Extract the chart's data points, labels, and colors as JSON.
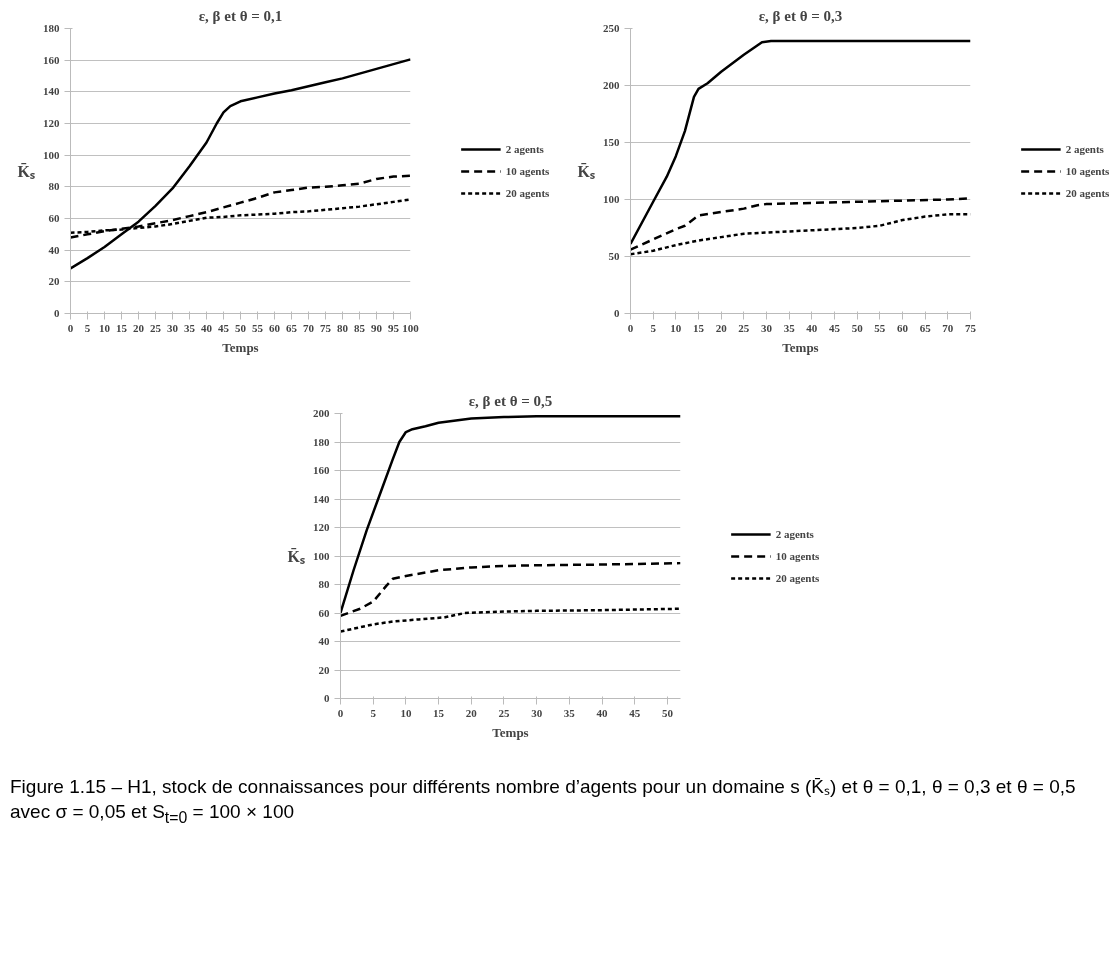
{
  "chart_data": [
    {
      "type": "line",
      "title": "ε, β et θ = 0,1",
      "xlabel": "Temps",
      "ylabel": "K̄ₛ",
      "xlim": [
        0,
        100
      ],
      "xticks": [
        0,
        5,
        10,
        15,
        20,
        25,
        30,
        35,
        40,
        45,
        50,
        55,
        60,
        65,
        70,
        75,
        80,
        85,
        90,
        95,
        100
      ],
      "ylim": [
        0,
        180
      ],
      "yticks": [
        0,
        20,
        40,
        60,
        80,
        100,
        120,
        140,
        160,
        180
      ],
      "grid": "y",
      "legend": "right",
      "series": [
        {
          "name": "2 agents",
          "color": "#000000",
          "line_style": "solid",
          "x": [
            0,
            5,
            10,
            15,
            20,
            25,
            30,
            35,
            40,
            43,
            45,
            47,
            50,
            55,
            60,
            65,
            70,
            75,
            80,
            85,
            90,
            95,
            100
          ],
          "values": [
            28.5,
            35,
            42,
            50,
            58,
            68,
            79,
            93,
            108,
            120,
            127,
            131,
            134,
            136.5,
            139,
            141,
            143.5,
            146,
            148.5,
            151.5,
            154.5,
            157.5,
            160.5
          ]
        },
        {
          "name": "10 agents",
          "color": "#000000",
          "line_style": "dashed",
          "x": [
            0,
            5,
            10,
            15,
            20,
            25,
            30,
            35,
            40,
            45,
            50,
            55,
            60,
            65,
            70,
            75,
            80,
            85,
            90,
            95,
            100
          ],
          "values": [
            48,
            50,
            52,
            53.5,
            55,
            57,
            59,
            61.5,
            64,
            67,
            70,
            73,
            76.5,
            78,
            79.5,
            80,
            81,
            82,
            85,
            86.5,
            87
          ]
        },
        {
          "name": "20 agents",
          "color": "#000000",
          "line_style": "dotted",
          "x": [
            0,
            5,
            10,
            15,
            20,
            25,
            30,
            35,
            40,
            45,
            50,
            55,
            60,
            65,
            70,
            75,
            80,
            85,
            90,
            95,
            100
          ],
          "values": [
            51,
            51.5,
            52.5,
            53,
            54,
            55,
            56.5,
            58.5,
            60.5,
            61,
            62,
            62.5,
            63,
            64,
            64.5,
            65.5,
            66.5,
            67.5,
            69,
            70.5,
            72
          ]
        }
      ]
    },
    {
      "type": "line",
      "title": "ε, β et θ = 0,3",
      "xlabel": "Temps",
      "ylabel": "K̄ₛ",
      "xlim": [
        0,
        75
      ],
      "xticks": [
        0,
        5,
        10,
        15,
        20,
        25,
        30,
        35,
        40,
        45,
        50,
        55,
        60,
        65,
        70,
        75
      ],
      "ylim": [
        0,
        250
      ],
      "yticks": [
        0,
        50,
        100,
        150,
        200,
        250
      ],
      "grid": "y",
      "legend": "right",
      "series": [
        {
          "name": "2 agents",
          "color": "#000000",
          "line_style": "solid",
          "x": [
            0,
            5,
            8,
            10,
            12,
            14,
            15,
            17,
            20,
            25,
            29,
            31,
            75
          ],
          "values": [
            61,
            98,
            120,
            138,
            160,
            190,
            197,
            202,
            212,
            227,
            238,
            239,
            239
          ]
        },
        {
          "name": "10 agents",
          "color": "#000000",
          "line_style": "dashed",
          "x": [
            0,
            5,
            10,
            12,
            15,
            20,
            25,
            28,
            30,
            40,
            50,
            60,
            70,
            75
          ],
          "values": [
            56,
            65,
            74,
            77,
            86,
            89,
            92,
            95,
            96,
            97,
            98,
            99,
            100,
            101
          ]
        },
        {
          "name": "20 agents",
          "color": "#000000",
          "line_style": "dotted",
          "x": [
            0,
            5,
            10,
            15,
            20,
            25,
            30,
            40,
            50,
            55,
            60,
            65,
            70,
            75
          ],
          "values": [
            52,
            55,
            60,
            64,
            67,
            70,
            71,
            73,
            75,
            77,
            82,
            85,
            87,
            87
          ]
        }
      ]
    },
    {
      "type": "line",
      "title": "ε, β et θ = 0,5",
      "xlabel": "Temps",
      "ylabel": "K̄ₛ",
      "xlim": [
        0,
        52
      ],
      "xticks": [
        0,
        5,
        10,
        15,
        20,
        25,
        30,
        35,
        40,
        45,
        50
      ],
      "ylim": [
        0,
        200
      ],
      "yticks": [
        0,
        20,
        40,
        60,
        80,
        100,
        120,
        140,
        160,
        180,
        200
      ],
      "grid": "y",
      "legend": "right",
      "annotations": [
        "Figure 1.15 – H1, stock de connaissances pour différents nombre d’agents pour un domaine s (K̄ₛ) et θ = 0,1, θ = 0,3 et θ = 0,5 avec σ = 0,05 et S$_{t=0}$ = 100 × 100"
      ],
      "series": [
        {
          "name": "2 agents",
          "color": "#000000",
          "line_style": "solid",
          "x": [
            0,
            2,
            4,
            6,
            8,
            9,
            10,
            11,
            13,
            15,
            20,
            25,
            30,
            40,
            52
          ],
          "values": [
            60,
            90,
            118,
            143,
            168,
            180,
            187,
            189,
            191,
            193.5,
            196.5,
            197.5,
            198,
            198,
            198
          ]
        },
        {
          "name": "10 agents",
          "color": "#000000",
          "line_style": "dashed",
          "x": [
            0,
            3,
            5,
            7,
            8,
            10,
            15,
            20,
            25,
            30,
            40,
            52
          ],
          "values": [
            58,
            63,
            68,
            79,
            84,
            86,
            90,
            92,
            93,
            93.5,
            94,
            95
          ]
        },
        {
          "name": "20 agents",
          "color": "#000000",
          "line_style": "dotted",
          "x": [
            0,
            5,
            8,
            12,
            16,
            19,
            25,
            30,
            40,
            52
          ],
          "values": [
            47,
            52,
            54,
            55.5,
            57,
            60,
            61,
            61.5,
            62,
            63
          ]
        }
      ]
    }
  ]
}
